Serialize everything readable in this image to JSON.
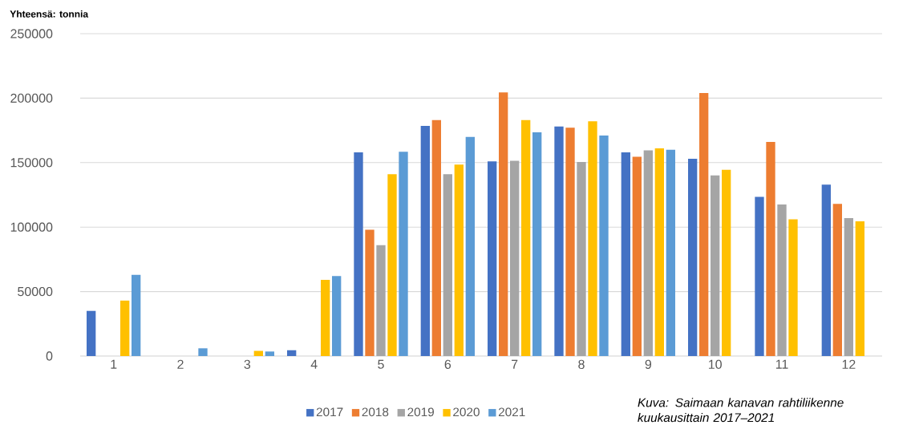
{
  "chart_data": {
    "type": "bar",
    "ylabel": "Yhteensä: tonnia",
    "categories": [
      "1",
      "2",
      "3",
      "4",
      "5",
      "6",
      "7",
      "8",
      "9",
      "10",
      "11",
      "12"
    ],
    "series": [
      {
        "name": "2017",
        "color": "#4472c4",
        "values": [
          35000,
          0,
          0,
          4500,
          158000,
          178500,
          151000,
          178000,
          158000,
          153000,
          123500,
          133000
        ]
      },
      {
        "name": "2018",
        "color": "#ed7d31",
        "values": [
          0,
          0,
          0,
          0,
          98000,
          183000,
          204500,
          177000,
          154500,
          204000,
          166000,
          118000
        ]
      },
      {
        "name": "2019",
        "color": "#a5a5a5",
        "values": [
          0,
          0,
          0,
          0,
          86000,
          141000,
          151500,
          150500,
          159500,
          140000,
          117500,
          107000
        ]
      },
      {
        "name": "2020",
        "color": "#ffc000",
        "values": [
          43000,
          0,
          4000,
          59000,
          141000,
          148500,
          183000,
          182000,
          161000,
          144500,
          106000,
          104500
        ]
      },
      {
        "name": "2021",
        "color": "#5b9bd5",
        "values": [
          63000,
          6000,
          3500,
          62000,
          158500,
          170000,
          173500,
          171000,
          160000,
          null,
          null,
          null
        ]
      }
    ],
    "ylim": [
      0,
      250000
    ],
    "yticks": [
      0,
      50000,
      100000,
      150000,
      200000,
      250000
    ],
    "grid": "y",
    "legend": "bottom",
    "annotations": [
      "Kuva: Saimaan kanavan rahtiliikenne kuukausittain 2017–2021"
    ]
  }
}
